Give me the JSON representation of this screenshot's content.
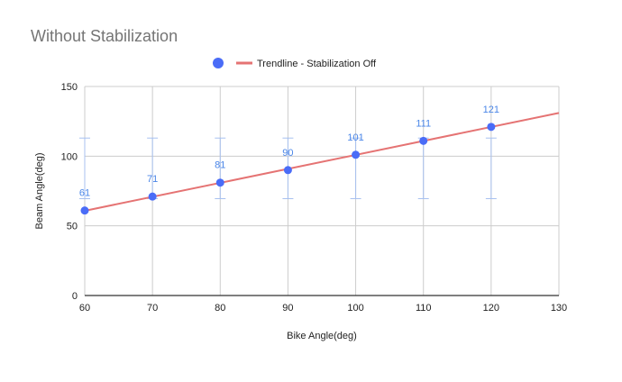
{
  "chart_data": {
    "type": "scatter",
    "title": "Without Stabilization",
    "xlabel": "Bike Angle(deg)",
    "ylabel": "Beam Angle(deg)",
    "xlim": [
      60,
      130
    ],
    "ylim": [
      0,
      150
    ],
    "x_ticks": [
      60,
      70,
      80,
      90,
      100,
      110,
      120,
      130
    ],
    "y_ticks": [
      0,
      50,
      100,
      150
    ],
    "grid": true,
    "legend_position": "top",
    "series": [
      {
        "color": "#4a6cf7",
        "points": [
          {
            "x": 60,
            "y": 61,
            "label": "61",
            "err_low": 69.5,
            "err_high": 113
          },
          {
            "x": 70,
            "y": 71,
            "label": "71",
            "err_low": 69.5,
            "err_high": 113
          },
          {
            "x": 80,
            "y": 81,
            "label": "81",
            "err_low": 69.5,
            "err_high": 113
          },
          {
            "x": 90,
            "y": 90,
            "label": "90",
            "err_low": 69.5,
            "err_high": 113
          },
          {
            "x": 100,
            "y": 101,
            "label": "101",
            "err_low": 69.5,
            "err_high": 113
          },
          {
            "x": 110,
            "y": 111,
            "label": "111",
            "err_low": 69.5,
            "err_high": 113
          },
          {
            "x": 120,
            "y": 121,
            "label": "121",
            "err_low": 69.5,
            "err_high": 113
          }
        ]
      }
    ],
    "trendline": {
      "name": "Trendline - Stabilization Off",
      "color": "#e57373",
      "x": [
        60,
        130
      ],
      "y": [
        60.8,
        131
      ]
    },
    "error_bar_color": "#a8c1f0",
    "grid_color": "#cccccc"
  }
}
